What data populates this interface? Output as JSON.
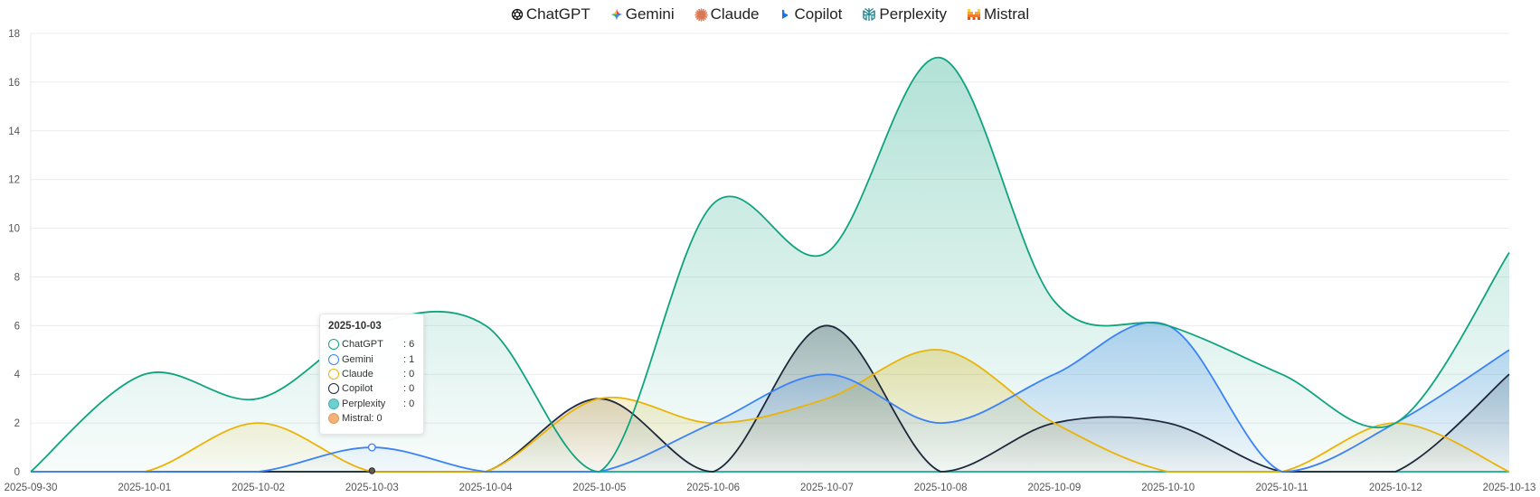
{
  "legend": [
    {
      "name": "ChatGPT",
      "icon": "chatgpt-icon"
    },
    {
      "name": "Gemini",
      "icon": "gemini-icon"
    },
    {
      "name": "Claude",
      "icon": "claude-icon"
    },
    {
      "name": "Copilot",
      "icon": "copilot-icon"
    },
    {
      "name": "Perplexity",
      "icon": "perplexity-icon"
    },
    {
      "name": "Mistral",
      "icon": "mistral-icon"
    }
  ],
  "tooltip": {
    "date": "2025-10-03",
    "rows": [
      {
        "name": "ChatGPT",
        "value": ": 6"
      },
      {
        "name": "Gemini",
        "value": ": 1"
      },
      {
        "name": "Claude",
        "value": ": 0"
      },
      {
        "name": "Copilot",
        "value": ": 0"
      },
      {
        "name": "Perplexity",
        "value": ": 0"
      },
      {
        "name": "Mistral: 0",
        "value": ""
      }
    ]
  },
  "chart_data": {
    "type": "area",
    "x": [
      "2025-09-30",
      "2025-10-01",
      "2025-10-02",
      "2025-10-03",
      "2025-10-04",
      "2025-10-05",
      "2025-10-06",
      "2025-10-07",
      "2025-10-08",
      "2025-10-09",
      "2025-10-10",
      "2025-10-11",
      "2025-10-12",
      "2025-10-13"
    ],
    "ylim": [
      0,
      18
    ],
    "yticks": [
      0,
      2,
      4,
      6,
      8,
      10,
      12,
      14,
      16,
      18
    ],
    "grid": true,
    "legend_position": "top",
    "highlight_index": 3,
    "series": [
      {
        "name": "ChatGPT",
        "color": "#10a37f",
        "values": [
          0,
          4,
          3,
          6,
          6,
          0,
          11,
          9,
          17,
          7,
          6,
          4,
          2,
          9
        ]
      },
      {
        "name": "Gemini",
        "color": "#3b82f6",
        "values": [
          0,
          0,
          0,
          1,
          0,
          0,
          2,
          4,
          2,
          4,
          6,
          0,
          2,
          5
        ]
      },
      {
        "name": "Claude",
        "color": "#eab308",
        "values": [
          0,
          0,
          2,
          0,
          0,
          3,
          2,
          3,
          5,
          2,
          0,
          0,
          2,
          0
        ]
      },
      {
        "name": "Copilot",
        "color": "#1e293b",
        "values": [
          0,
          0,
          0,
          0,
          0,
          3,
          0,
          6,
          0,
          2,
          2,
          0,
          0,
          4
        ]
      },
      {
        "name": "Perplexity",
        "color": "#14b8a6",
        "values": [
          0,
          0,
          0,
          0,
          0,
          0,
          0,
          0,
          0,
          0,
          0,
          0,
          0,
          0
        ]
      },
      {
        "name": "Mistral",
        "color": "#f97316",
        "values": [
          0,
          0,
          0,
          0,
          0,
          0,
          0,
          0,
          0,
          0,
          0,
          0,
          0,
          0
        ]
      }
    ]
  }
}
